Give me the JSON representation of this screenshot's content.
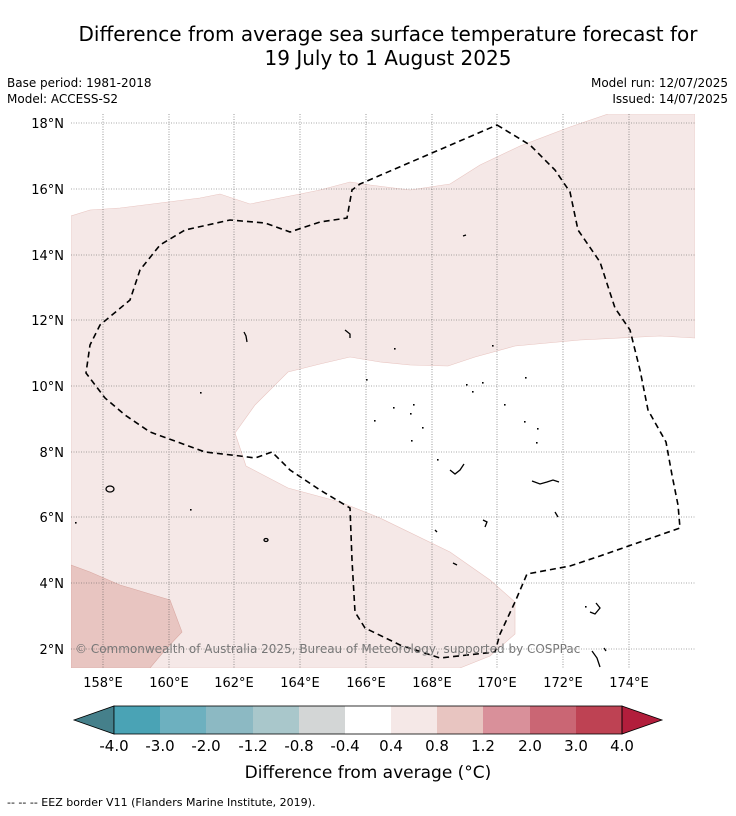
{
  "header": {
    "title_line1": "Difference from average sea surface temperature forecast for",
    "title_line2": "19 July to 1 August 2025",
    "base_period": "Base period: 1981-2018",
    "model": "Model: ACCESS-S2",
    "model_run": "Model run: 12/07/2025",
    "issued": "Issued: 14/07/2025"
  },
  "map": {
    "lat_range": [
      1.5,
      18.3
    ],
    "lon_range": [
      157.0,
      176.0
    ],
    "lat_ticks": [
      "2°N",
      "4°N",
      "6°N",
      "8°N",
      "10°N",
      "12°N",
      "14°N",
      "16°N",
      "18°N"
    ],
    "lon_ticks": [
      "158°E",
      "160°E",
      "162°E",
      "164°E",
      "166°E",
      "168°E",
      "170°E",
      "172°E",
      "174°E"
    ],
    "copyright": "© Commonwealth of Australia 2025, Bureau of Meteorology, supported by COSPPac",
    "colors": {
      "band_0.4_0.8": "#f5e8e7",
      "band_0.8_1.2": "#e8c5c1",
      "border": "#000000"
    }
  },
  "colorbar": {
    "title": "Difference from average (°C)",
    "labels": [
      "-4.0",
      "-3.0",
      "-2.0",
      "-1.2",
      "-0.8",
      "-0.4",
      "0.4",
      "0.8",
      "1.2",
      "2.0",
      "3.0",
      "4.0"
    ],
    "colors": [
      "#45808b",
      "#4aa3b5",
      "#6db0bf",
      "#8cb9c3",
      "#a9c7cb",
      "#d3d6d6",
      "#ffffff",
      "#f5e8e7",
      "#e8c5c1",
      "#d9909a",
      "#ca6674",
      "#be4253",
      "#b21e3c"
    ]
  },
  "footer": {
    "legend": "--  --  -- EEZ border V11 (Flanders Marine Institute, 2019)."
  }
}
